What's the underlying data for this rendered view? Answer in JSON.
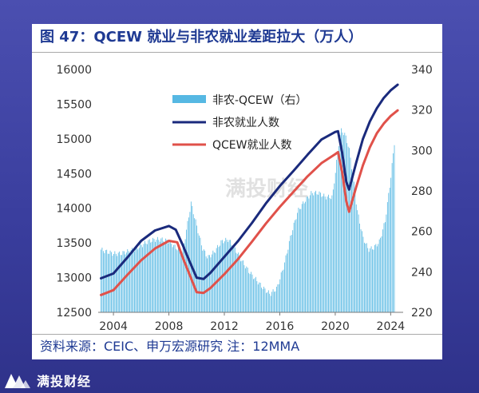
{
  "title": "图 47：QCEW 就业与非农就业差距拉大（万人）",
  "source": "资料来源：CEIC、申万宏源研究    注：12MMA",
  "watermark": "满投财经",
  "brand": "满投财经",
  "colors": {
    "bar": "#56b8e3",
    "nfp_line": "#1a2a7c",
    "qcew_line": "#e0514a",
    "title": "#1f3a93"
  },
  "chart_data": {
    "type": "bar+line",
    "x_ticks": [
      2004,
      2008,
      2012,
      2016,
      2020,
      2024
    ],
    "y_left": {
      "min": 12500,
      "max": 16000,
      "ticks": [
        12500,
        13000,
        13500,
        14000,
        14500,
        15000,
        15500,
        16000
      ]
    },
    "y_right": {
      "min": 220,
      "max": 340,
      "ticks": [
        220,
        240,
        260,
        280,
        300,
        320,
        340
      ]
    },
    "grid": false,
    "legend_position": "top-center",
    "series": [
      {
        "name": "非农-QCEW（右）",
        "type": "bar",
        "axis": "right",
        "x": [
          2003.1,
          2003.5,
          2004.0,
          2004.5,
          2005.0,
          2005.5,
          2006.0,
          2006.5,
          2007.0,
          2007.5,
          2008.0,
          2008.5,
          2009.0,
          2009.3,
          2009.6,
          2010.0,
          2010.4,
          2010.8,
          2011.3,
          2011.8,
          2012.3,
          2012.8,
          2013.3,
          2013.8,
          2014.3,
          2014.8,
          2015.3,
          2015.8,
          2016.3,
          2016.8,
          2017.3,
          2017.8,
          2018.3,
          2018.8,
          2019.3,
          2019.8,
          2020.2,
          2020.4,
          2020.7,
          2021.0,
          2021.3,
          2021.6,
          2022.0,
          2022.4,
          2022.8,
          2023.2,
          2023.6,
          2024.0,
          2024.3
        ],
        "values": [
          251,
          250,
          249,
          249,
          250,
          251,
          253,
          255,
          256,
          256,
          255,
          252,
          250,
          262,
          274,
          263,
          252,
          247,
          250,
          255,
          256,
          251,
          245,
          240,
          236,
          232,
          229,
          232,
          243,
          258,
          270,
          275,
          279,
          279,
          277,
          277,
          300,
          310,
          308,
          301,
          286,
          270,
          257,
          251,
          252,
          255,
          265,
          286,
          306
        ]
      },
      {
        "name": "非农就业人数",
        "type": "line",
        "axis": "left",
        "x": [
          2003.1,
          2004.0,
          2005.0,
          2006.0,
          2007.0,
          2008.0,
          2008.5,
          2009.0,
          2009.5,
          2010.0,
          2010.5,
          2011.0,
          2012.0,
          2013.0,
          2014.0,
          2015.0,
          2016.0,
          2017.0,
          2018.0,
          2019.0,
          2020.0,
          2020.2,
          2020.5,
          2020.8,
          2021.0,
          2021.5,
          2022.0,
          2022.5,
          2023.0,
          2023.5,
          2024.0,
          2024.5
        ],
        "values": [
          12990,
          13060,
          13290,
          13530,
          13680,
          13745,
          13690,
          13470,
          13230,
          13000,
          12980,
          13070,
          13300,
          13530,
          13790,
          14070,
          14320,
          14540,
          14770,
          14990,
          15100,
          15110,
          14800,
          14380,
          14270,
          14650,
          15000,
          15250,
          15440,
          15590,
          15700,
          15780
        ]
      },
      {
        "name": "QCEW就业人数",
        "type": "line",
        "axis": "left",
        "x": [
          2003.1,
          2004.0,
          2005.0,
          2006.0,
          2007.0,
          2008.0,
          2008.6,
          2009.0,
          2009.5,
          2010.0,
          2010.5,
          2011.0,
          2012.0,
          2013.0,
          2014.0,
          2015.0,
          2016.0,
          2017.0,
          2018.0,
          2019.0,
          2020.0,
          2020.2,
          2020.5,
          2020.8,
          2021.0,
          2021.5,
          2022.0,
          2022.5,
          2023.0,
          2023.5,
          2024.0,
          2024.5
        ],
        "values": [
          12750,
          12820,
          13040,
          13250,
          13420,
          13530,
          13510,
          13290,
          13040,
          12790,
          12780,
          12850,
          13050,
          13270,
          13520,
          13780,
          14020,
          14240,
          14460,
          14650,
          14780,
          14810,
          14520,
          14100,
          13950,
          14300,
          14620,
          14880,
          15080,
          15220,
          15330,
          15410
        ]
      }
    ]
  }
}
